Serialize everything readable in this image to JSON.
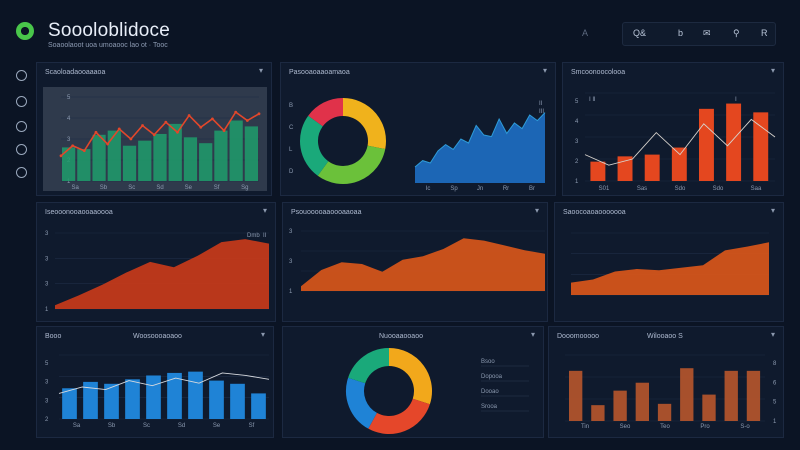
{
  "header": {
    "title": "Soooloblidoce",
    "subtitle": "Soaoolaoot uoa umoaooc lao ot ·  Tooc",
    "search_glyph": "A",
    "toolbar_items": [
      {
        "name": "search-button",
        "label": "Q&",
        "icon": "search-icon"
      },
      {
        "name": "refresh-button",
        "label": "b",
        "icon": "refresh-icon"
      },
      {
        "name": "mail-button",
        "label": "✉",
        "icon": "mail-icon"
      },
      {
        "name": "notifications-button",
        "label": "⚲",
        "icon": "bell-icon"
      },
      {
        "name": "user-button",
        "label": "R",
        "icon": "user-icon"
      }
    ]
  },
  "sidebar": {
    "items": [
      {
        "name": "sidebar-item-home",
        "icon": "home-icon"
      },
      {
        "name": "sidebar-item-analytics",
        "icon": "chart-icon"
      },
      {
        "name": "sidebar-item-reports",
        "icon": "report-icon"
      },
      {
        "name": "sidebar-item-alerts",
        "icon": "alert-icon"
      },
      {
        "name": "sidebar-item-settings",
        "icon": "gear-icon"
      }
    ]
  },
  "panels": {
    "p1": {
      "title": "Scaoloadaooaaaoa",
      "menu": "▾"
    },
    "p2": {
      "title": "Pasooaoaaoamaoa",
      "menu": "▾"
    },
    "p3": {
      "title": "Smcoonoocolooa",
      "menu": "▾"
    },
    "p4": {
      "title": "Iseooonooaooaaoooa",
      "menu": "▾"
    },
    "p5": {
      "title": "Psouooooaaoooaaoaa",
      "menu": "▾"
    },
    "p6": {
      "title": "Saoocoaoaooooooa",
      "menu": "▾"
    },
    "p7": {
      "title": "Booo",
      "title_right": "Woosoooaoaoo",
      "menu": "▾"
    },
    "p8": {
      "title": "Nuooaaooaoo",
      "menu": "▾"
    },
    "p9": {
      "title": "Dooomooooo",
      "title_right": "Wilooaoo S",
      "menu": "▾"
    }
  },
  "chart_data": [
    {
      "type": "bar",
      "panel": "p1",
      "bars": [
        40,
        38,
        55,
        60,
        42,
        48,
        56,
        68,
        52,
        45,
        60,
        72,
        65
      ],
      "line": [
        30,
        42,
        36,
        58,
        44,
        62,
        50,
        66,
        55,
        70,
        58,
        78,
        64,
        74,
        60,
        82,
        72,
        80
      ],
      "ylim": [
        0,
        100
      ],
      "y_tick_labels": [
        "5",
        "4",
        "3",
        "2",
        "1"
      ],
      "x_tick_labels": [
        "Sa",
        "Sb",
        "Sc",
        "Sd",
        "Se",
        "Sf",
        "Sg"
      ],
      "colors": {
        "bars": "#1f9e6c",
        "line": "#e2472b"
      }
    },
    {
      "type": "pie",
      "panel": "p2",
      "values": [
        28,
        32,
        25,
        15
      ],
      "colors": [
        "#f0b21c",
        "#6bc13a",
        "#1aa97a",
        "#e0324a"
      ]
    },
    {
      "type": "area",
      "panel": "p3",
      "values": [
        20,
        28,
        25,
        40,
        48,
        42,
        55,
        50,
        72,
        60,
        58,
        80,
        62,
        75,
        68,
        85,
        78,
        88
      ],
      "ylim": [
        0,
        100
      ],
      "legend": [
        "II",
        "III"
      ],
      "y_tick_labels": [
        "B",
        "C",
        "L",
        "D"
      ],
      "x_tick_labels": [
        "Ic",
        "Sp",
        "Jn",
        "Rr",
        "Br"
      ],
      "colors": {
        "area": "#1e6fc4",
        "line": "#2e9bd8"
      }
    },
    {
      "type": "bar",
      "panel": "p6",
      "values": [
        22,
        28,
        30,
        38,
        82,
        88,
        78
      ],
      "line": [
        30,
        18,
        25,
        55,
        30,
        65,
        40,
        70,
        50
      ],
      "ylim": [
        0,
        100
      ],
      "legend": [
        "Ⅰ Ⅱ",
        "Ⅰ",
        "Ⅱ"
      ],
      "y_tick_labels": [
        "5",
        "4",
        "3",
        "2",
        "1"
      ],
      "x_tick_labels": [
        "S01",
        "Sas",
        "Sdo",
        "Sdo",
        "Saa"
      ],
      "colors": {
        "bars": "#e4471f",
        "line": "#d7d2cc"
      }
    },
    {
      "type": "area",
      "panel": "p4",
      "values": [
        5,
        18,
        32,
        48,
        62,
        55,
        70,
        88,
        92,
        86
      ],
      "ylim": [
        0,
        100
      ],
      "legend": [
        "Dmb",
        "II"
      ],
      "y_tick_labels": [
        "3",
        "3",
        "3",
        "1"
      ],
      "colors": {
        "area": "#c83a1a"
      }
    },
    {
      "type": "area",
      "panel": "p5",
      "values": [
        8,
        35,
        48,
        45,
        32,
        52,
        58,
        70,
        88,
        84,
        76,
        68,
        62
      ],
      "ylim": [
        0,
        100
      ],
      "y_tick_labels": [
        "3",
        "3",
        "1"
      ],
      "colors": {
        "area": "#d8561a"
      }
    },
    {
      "type": "area",
      "panel": "p7",
      "values": [
        20,
        25,
        38,
        42,
        40,
        44,
        48,
        72,
        78,
        85
      ],
      "ylim": [
        0,
        100
      ],
      "colors": {
        "area": "#d9561a"
      }
    },
    {
      "type": "bar",
      "panel": "p8",
      "values": [
        48,
        58,
        55,
        62,
        68,
        72,
        74,
        60,
        55,
        40
      ],
      "line": [
        40,
        50,
        46,
        60,
        52,
        64,
        56,
        72,
        68,
        62
      ],
      "ylim": [
        0,
        100
      ],
      "y_tick_labels": [
        "5",
        "3",
        "3",
        "2"
      ],
      "x_tick_labels": [
        "Sa",
        "Sb",
        "Sc",
        "Sd",
        "Se",
        "Sf"
      ],
      "colors": {
        "bars": "#1f83d6",
        "line": "#d6d9de"
      }
    },
    {
      "type": "pie",
      "panel": "p9",
      "values": [
        30,
        28,
        22,
        20
      ],
      "legend": [
        "Bsoo",
        "Dopooa",
        "Dooao",
        "Srooa"
      ],
      "colors": [
        "#f2a81b",
        "#e5472a",
        "#1f83d6",
        "#1aa97a"
      ]
    },
    {
      "type": "bar",
      "panel": "p9b",
      "values": [
        76,
        24,
        46,
        58,
        26,
        80,
        40,
        76,
        76
      ],
      "ylim": [
        0,
        100
      ],
      "y_tick_labels": [
        "8",
        "6",
        "5",
        "1"
      ],
      "x_tick_labels": [
        "Tin",
        "Seo",
        "Teo",
        "Pro",
        "S-o"
      ],
      "colors": {
        "bars": "#b8562c"
      }
    }
  ]
}
